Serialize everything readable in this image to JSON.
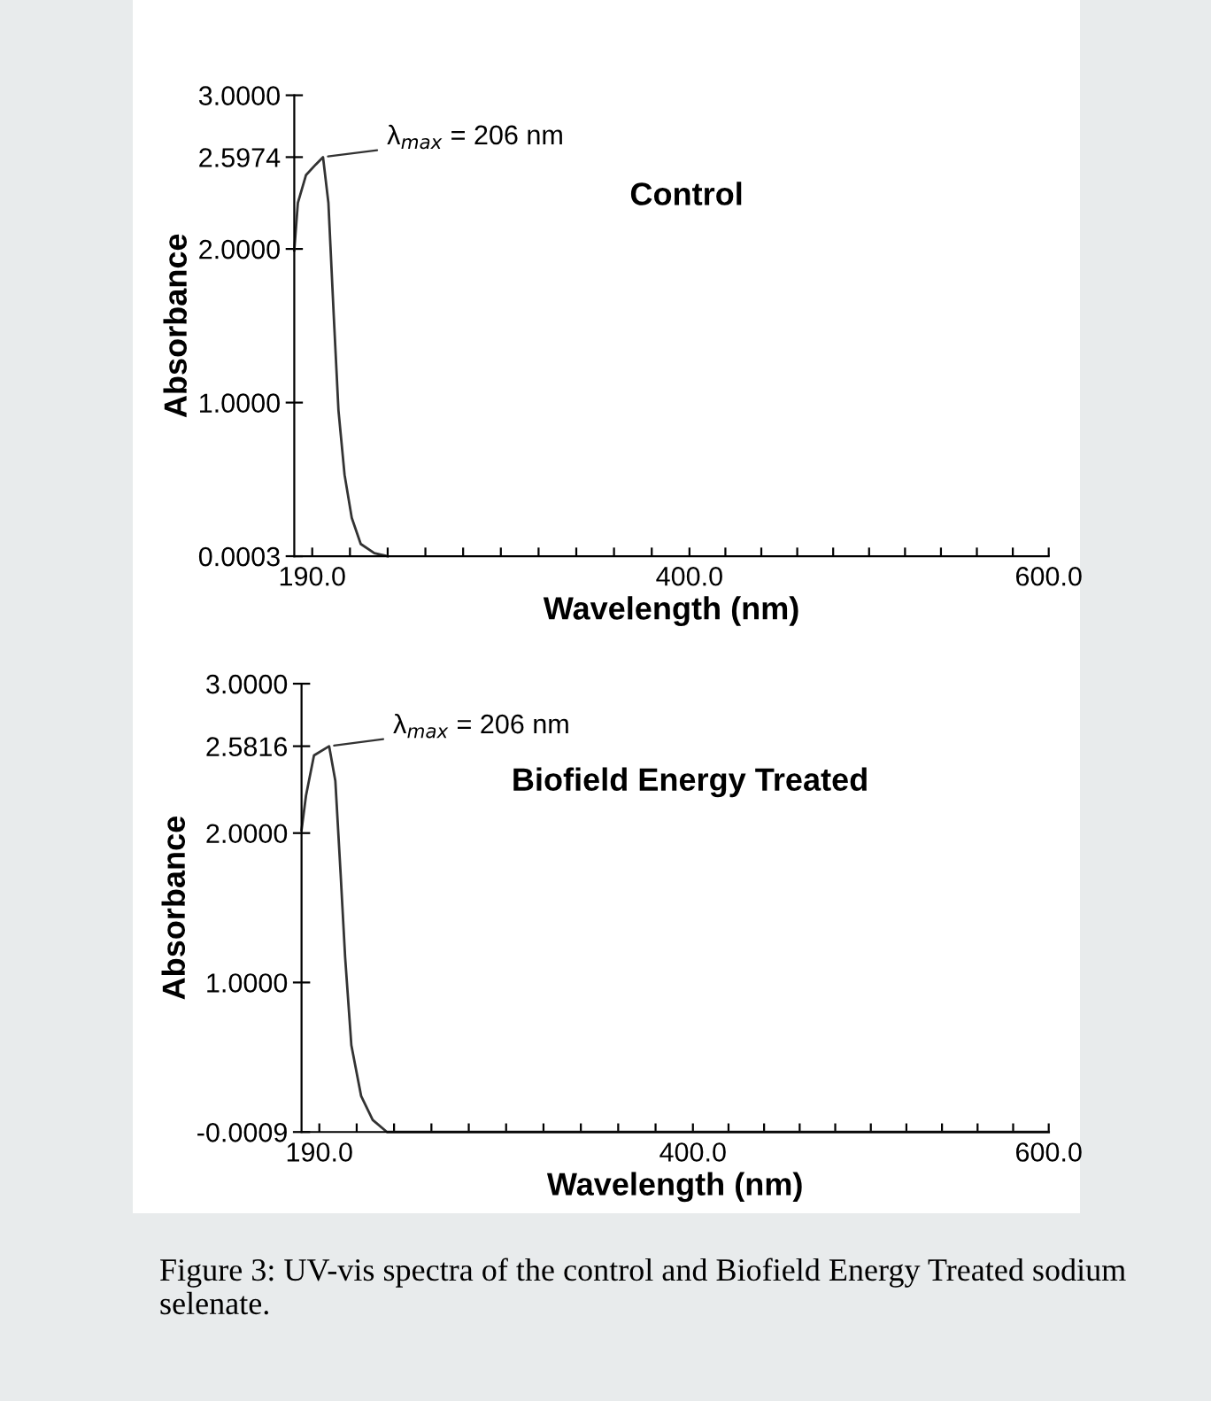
{
  "chart_data": [
    {
      "type": "line",
      "title": "Control",
      "xlabel": "Wavelength (nm)",
      "ylabel": "Absorbance",
      "x": [
        180,
        182,
        186.5,
        192,
        196,
        199,
        202,
        204.6,
        208,
        212,
        217,
        224.6,
        232
      ],
      "series": [
        {
          "color": "#333333",
          "values": [
            1.99,
            2.3,
            2.48,
            2.55,
            2.5974,
            2.3,
            1.56,
            0.95,
            0.53,
            0.25,
            0.08,
            0.02,
            0.0003
          ]
        }
      ],
      "xlim": [
        180,
        600
      ],
      "ylim": [
        0.0003,
        3.0
      ],
      "xticks": [
        {
          "value": 190,
          "label": "190.0"
        },
        {
          "value": 211,
          "label": null
        },
        {
          "value": 232,
          "label": null
        },
        {
          "value": 253,
          "label": null
        },
        {
          "value": 274,
          "label": null
        },
        {
          "value": 295,
          "label": null
        },
        {
          "value": 316,
          "label": null
        },
        {
          "value": 337,
          "label": null
        },
        {
          "value": 358,
          "label": null
        },
        {
          "value": 379,
          "label": null
        },
        {
          "value": 400,
          "label": "400.0"
        },
        {
          "value": 420,
          "label": null
        },
        {
          "value": 440,
          "label": null
        },
        {
          "value": 460,
          "label": null
        },
        {
          "value": 480,
          "label": null
        },
        {
          "value": 500,
          "label": null
        },
        {
          "value": 520,
          "label": null
        },
        {
          "value": 540,
          "label": null
        },
        {
          "value": 560,
          "label": null
        },
        {
          "value": 580,
          "label": null
        },
        {
          "value": 600,
          "label": "600.0"
        }
      ],
      "yticks": [
        {
          "value": 0.0003,
          "label": "0.0003"
        },
        {
          "value": 1.0,
          "label": "1.0000"
        },
        {
          "value": 2.0,
          "label": "2.0000"
        },
        {
          "value": 2.5974,
          "label": "2.5974"
        },
        {
          "value": 3.0,
          "label": "3.0000"
        }
      ],
      "annotations": [
        {
          "text": "λ$_{max}$ = 206 nm",
          "x": 196,
          "y": 2.5974
        }
      ],
      "grid": false,
      "legend": false,
      "marker": "none",
      "line_style": "solid"
    },
    {
      "type": "line",
      "title": "Biofield Energy Treated",
      "xlabel": "Wavelength (nm)",
      "ylabel": "Absorbance",
      "x": [
        180,
        182.5,
        187,
        195.5,
        199,
        202,
        204.5,
        208,
        213.5,
        220,
        228,
        600
      ],
      "series": [
        {
          "color": "#333333",
          "values": [
            2.02,
            2.25,
            2.52,
            2.5816,
            2.35,
            1.72,
            1.17,
            0.58,
            0.24,
            0.08,
            -0.0009,
            -0.0009
          ]
        }
      ],
      "xlim": [
        180,
        600
      ],
      "ylim": [
        -0.0009,
        3.0
      ],
      "xticks": [
        {
          "value": 190,
          "label": "190.0"
        },
        {
          "value": 211,
          "label": null
        },
        {
          "value": 232,
          "label": null
        },
        {
          "value": 253,
          "label": null
        },
        {
          "value": 274,
          "label": null
        },
        {
          "value": 295,
          "label": null
        },
        {
          "value": 316,
          "label": null
        },
        {
          "value": 337,
          "label": null
        },
        {
          "value": 358,
          "label": null
        },
        {
          "value": 379,
          "label": null
        },
        {
          "value": 400,
          "label": "400.0"
        },
        {
          "value": 420,
          "label": null
        },
        {
          "value": 440,
          "label": null
        },
        {
          "value": 460,
          "label": null
        },
        {
          "value": 480,
          "label": null
        },
        {
          "value": 500,
          "label": null
        },
        {
          "value": 520,
          "label": null
        },
        {
          "value": 540,
          "label": null
        },
        {
          "value": 560,
          "label": null
        },
        {
          "value": 580,
          "label": null
        },
        {
          "value": 600,
          "label": "600.0"
        }
      ],
      "yticks": [
        {
          "value": -0.0009,
          "label": "-0.0009"
        },
        {
          "value": 1.0,
          "label": "1.0000"
        },
        {
          "value": 2.0,
          "label": "2.0000"
        },
        {
          "value": 2.5816,
          "label": "2.5816"
        },
        {
          "value": 3.0,
          "label": "3.0000"
        }
      ],
      "annotations": [
        {
          "text": "λ$_{max}$ = 206 nm",
          "x": 195.5,
          "y": 2.5816
        },
        "Figure 3: UV-vis spectra of the control and Biofield Energy Treated sodium selenate."
      ],
      "grid": false,
      "legend": false,
      "marker": "none",
      "line_style": "solid"
    }
  ]
}
